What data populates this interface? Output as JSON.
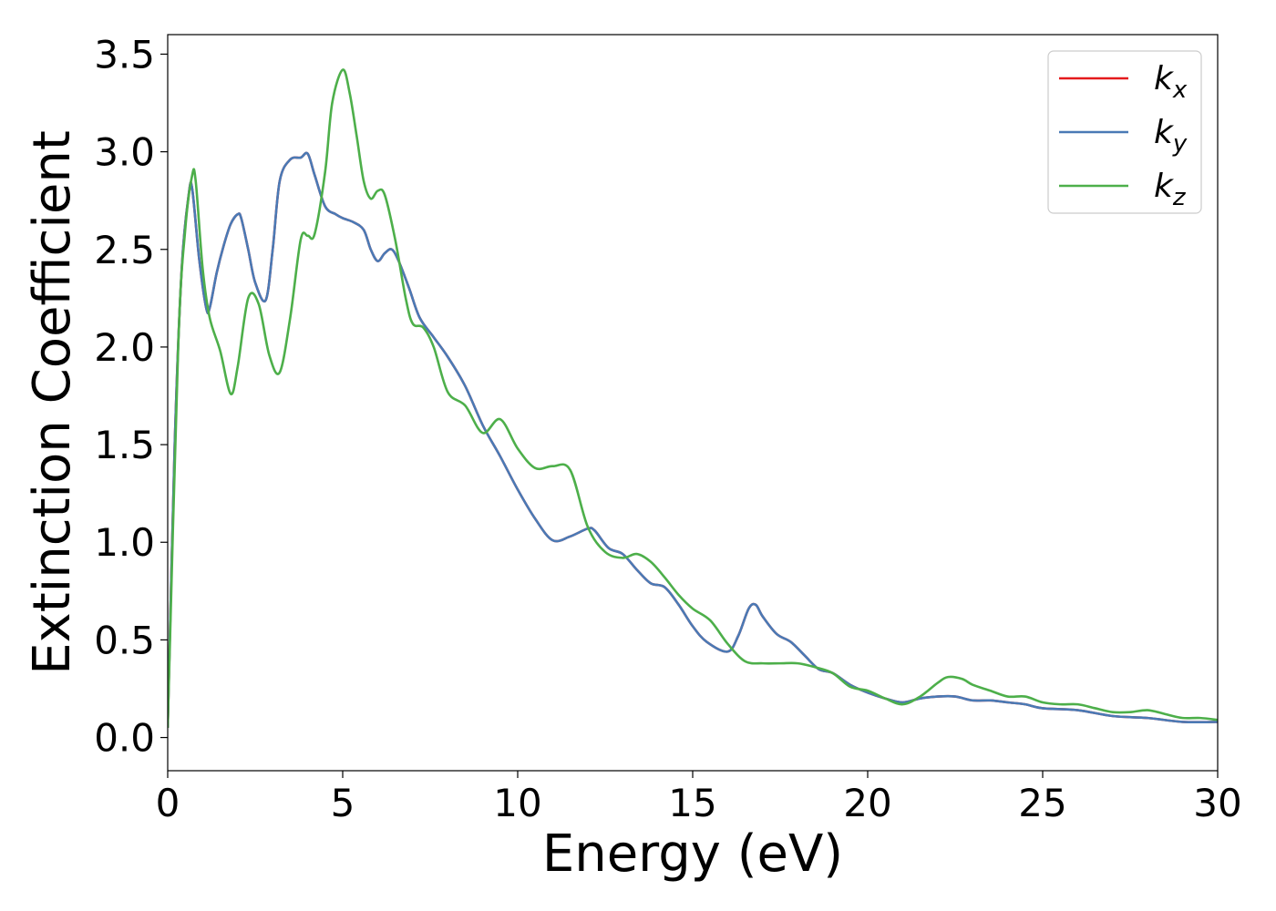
{
  "chart_data": {
    "type": "line",
    "title": "",
    "xlabel": "Energy (eV)",
    "ylabel": "Extinction Coefficient",
    "xlim": [
      0,
      30
    ],
    "ylim": [
      -0.17,
      3.6
    ],
    "xticks": [
      0,
      5,
      10,
      15,
      20,
      25,
      30
    ],
    "xtick_labels": [
      "0",
      "5",
      "10",
      "15",
      "20",
      "25",
      "30"
    ],
    "yticks": [
      0.0,
      0.5,
      1.0,
      1.5,
      2.0,
      2.5,
      3.0,
      3.5
    ],
    "ytick_labels": [
      "0.0",
      "0.5",
      "1.0",
      "1.5",
      "2.0",
      "2.5",
      "3.0",
      "3.5"
    ],
    "grid": false,
    "legend_position": "top-right",
    "series": [
      {
        "name": "kx",
        "legend_base": "k",
        "legend_sub": "x",
        "color": "#e41a1c",
        "x": [
          0,
          0.2,
          0.4,
          0.6,
          0.7,
          0.9,
          1.1,
          1.2,
          1.4,
          1.6,
          1.8,
          2.0,
          2.1,
          2.3,
          2.5,
          2.8,
          3.0,
          3.2,
          3.5,
          3.8,
          4.0,
          4.2,
          4.5,
          4.8,
          5.0,
          5.3,
          5.6,
          5.8,
          6.0,
          6.2,
          6.4,
          6.6,
          6.9,
          7.2,
          7.6,
          8.0,
          8.5,
          9.0,
          9.5,
          10.0,
          10.5,
          11.0,
          11.5,
          12.0,
          12.2,
          12.6,
          13.0,
          13.4,
          13.8,
          14.2,
          14.6,
          15.0,
          15.4,
          16.0,
          16.3,
          16.6,
          16.8,
          17.0,
          17.4,
          17.8,
          18.2,
          18.6,
          19.0,
          19.5,
          20.0,
          20.5,
          21.0,
          21.5,
          22.0,
          22.5,
          23.0,
          23.5,
          24.0,
          24.5,
          25.0,
          26.0,
          27.0,
          28.0,
          29.0,
          30.0
        ],
        "y": [
          0.05,
          1.5,
          2.4,
          2.78,
          2.81,
          2.45,
          2.2,
          2.2,
          2.38,
          2.52,
          2.63,
          2.68,
          2.66,
          2.5,
          2.33,
          2.24,
          2.5,
          2.85,
          2.96,
          2.97,
          2.99,
          2.88,
          2.72,
          2.68,
          2.66,
          2.64,
          2.6,
          2.5,
          2.44,
          2.48,
          2.5,
          2.44,
          2.3,
          2.15,
          2.05,
          1.95,
          1.8,
          1.6,
          1.44,
          1.27,
          1.12,
          1.01,
          1.03,
          1.07,
          1.06,
          0.97,
          0.94,
          0.86,
          0.79,
          0.77,
          0.68,
          0.57,
          0.49,
          0.44,
          0.52,
          0.66,
          0.68,
          0.62,
          0.53,
          0.49,
          0.42,
          0.35,
          0.33,
          0.27,
          0.23,
          0.2,
          0.18,
          0.2,
          0.21,
          0.21,
          0.19,
          0.19,
          0.18,
          0.17,
          0.15,
          0.14,
          0.11,
          0.1,
          0.08,
          0.08
        ]
      },
      {
        "name": "ky",
        "legend_base": "k",
        "legend_sub": "y",
        "color": "#4a7ab5",
        "x": [
          0,
          0.2,
          0.4,
          0.6,
          0.7,
          0.9,
          1.1,
          1.2,
          1.4,
          1.6,
          1.8,
          2.0,
          2.1,
          2.3,
          2.5,
          2.8,
          3.0,
          3.2,
          3.5,
          3.8,
          4.0,
          4.2,
          4.5,
          4.8,
          5.0,
          5.3,
          5.6,
          5.8,
          6.0,
          6.2,
          6.4,
          6.6,
          6.9,
          7.2,
          7.6,
          8.0,
          8.5,
          9.0,
          9.5,
          10.0,
          10.5,
          11.0,
          11.5,
          12.0,
          12.2,
          12.6,
          13.0,
          13.4,
          13.8,
          14.2,
          14.6,
          15.0,
          15.4,
          16.0,
          16.3,
          16.6,
          16.8,
          17.0,
          17.4,
          17.8,
          18.2,
          18.6,
          19.0,
          19.5,
          20.0,
          20.5,
          21.0,
          21.5,
          22.0,
          22.5,
          23.0,
          23.5,
          24.0,
          24.5,
          25.0,
          26.0,
          27.0,
          28.0,
          29.0,
          30.0
        ],
        "y": [
          0.05,
          1.5,
          2.4,
          2.78,
          2.81,
          2.45,
          2.2,
          2.2,
          2.38,
          2.52,
          2.63,
          2.68,
          2.66,
          2.5,
          2.33,
          2.24,
          2.5,
          2.85,
          2.96,
          2.97,
          2.99,
          2.88,
          2.72,
          2.68,
          2.66,
          2.64,
          2.6,
          2.5,
          2.44,
          2.48,
          2.5,
          2.44,
          2.3,
          2.15,
          2.05,
          1.95,
          1.8,
          1.6,
          1.44,
          1.27,
          1.12,
          1.01,
          1.03,
          1.07,
          1.06,
          0.97,
          0.94,
          0.86,
          0.79,
          0.77,
          0.68,
          0.57,
          0.49,
          0.44,
          0.52,
          0.66,
          0.68,
          0.62,
          0.53,
          0.49,
          0.42,
          0.35,
          0.33,
          0.27,
          0.23,
          0.2,
          0.18,
          0.2,
          0.21,
          0.21,
          0.19,
          0.19,
          0.18,
          0.17,
          0.15,
          0.14,
          0.11,
          0.1,
          0.08,
          0.08
        ]
      },
      {
        "name": "kz",
        "legend_base": "k",
        "legend_sub": "z",
        "color": "#4daf4a",
        "x": [
          0,
          0.3,
          0.5,
          0.7,
          0.8,
          1.0,
          1.2,
          1.5,
          1.8,
          2.0,
          2.3,
          2.6,
          2.9,
          3.2,
          3.5,
          3.8,
          4.0,
          4.2,
          4.5,
          4.7,
          5.0,
          5.2,
          5.4,
          5.6,
          5.8,
          6.0,
          6.2,
          6.5,
          6.8,
          7.0,
          7.3,
          7.6,
          8.0,
          8.5,
          9.0,
          9.5,
          10.0,
          10.5,
          11.0,
          11.5,
          12.0,
          12.5,
          13.0,
          13.4,
          13.8,
          14.2,
          14.6,
          15.0,
          15.5,
          16.0,
          16.5,
          17.0,
          17.5,
          18.0,
          18.5,
          19.0,
          19.5,
          20.0,
          20.5,
          21.0,
          21.5,
          22.0,
          22.3,
          22.7,
          23.0,
          23.5,
          24.0,
          24.5,
          25.0,
          25.5,
          26.0,
          26.5,
          27.0,
          27.5,
          28.0,
          28.5,
          29.0,
          29.5,
          30.0
        ],
        "y": [
          0.05,
          2.0,
          2.6,
          2.88,
          2.85,
          2.4,
          2.15,
          1.98,
          1.76,
          1.9,
          2.25,
          2.22,
          1.96,
          1.87,
          2.15,
          2.55,
          2.57,
          2.58,
          2.9,
          3.25,
          3.42,
          3.3,
          3.08,
          2.85,
          2.76,
          2.8,
          2.78,
          2.55,
          2.25,
          2.12,
          2.1,
          2.0,
          1.77,
          1.7,
          1.56,
          1.63,
          1.48,
          1.38,
          1.39,
          1.37,
          1.08,
          0.95,
          0.92,
          0.94,
          0.9,
          0.82,
          0.73,
          0.66,
          0.6,
          0.48,
          0.39,
          0.38,
          0.38,
          0.38,
          0.36,
          0.33,
          0.26,
          0.24,
          0.2,
          0.17,
          0.21,
          0.28,
          0.31,
          0.3,
          0.27,
          0.24,
          0.21,
          0.21,
          0.18,
          0.17,
          0.17,
          0.15,
          0.13,
          0.13,
          0.14,
          0.12,
          0.1,
          0.1,
          0.09
        ]
      }
    ]
  }
}
